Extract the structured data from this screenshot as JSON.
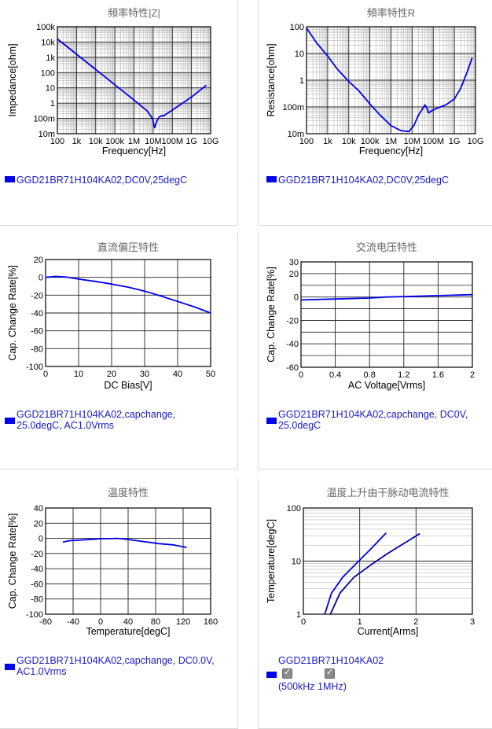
{
  "chart_data": [
    {
      "type": "line",
      "title": "頻率特性|Z|",
      "xlabel": "Frequency[Hz]",
      "ylabel": "Impedance[ohm]",
      "xscale": "log",
      "yscale": "log",
      "xlim": [
        100,
        10000000000
      ],
      "ylim": [
        0.01,
        100000
      ],
      "xticks": [
        {
          "v": 100,
          "l": "100"
        },
        {
          "v": 1000,
          "l": "1k"
        },
        {
          "v": 10000,
          "l": "10k"
        },
        {
          "v": 100000,
          "l": "100k"
        },
        {
          "v": 1000000,
          "l": "1M"
        },
        {
          "v": 10000000,
          "l": "10M"
        },
        {
          "v": 100000000,
          "l": "100M"
        },
        {
          "v": 1000000000,
          "l": "1G"
        },
        {
          "v": 10000000000,
          "l": "10G"
        }
      ],
      "yticks": [
        {
          "v": 100000,
          "l": "100k"
        },
        {
          "v": 10000,
          "l": "10k"
        },
        {
          "v": 1000,
          "l": "1k"
        },
        {
          "v": 100,
          "l": "100"
        },
        {
          "v": 10,
          "l": "10"
        },
        {
          "v": 1,
          "l": "1"
        },
        {
          "v": 0.1,
          "l": "100m"
        },
        {
          "v": 0.01,
          "l": "10m"
        }
      ],
      "grid": "log-minor",
      "series": [
        {
          "color": "#0000ee",
          "points": [
            [
              100,
              16000
            ],
            [
              1000000,
              1.6
            ],
            [
              5000000,
              0.3
            ],
            [
              9000000,
              0.1
            ],
            [
              12000000,
              0.025
            ],
            [
              15000000,
              0.06
            ],
            [
              20000000,
              0.12
            ],
            [
              30000000,
              0.16
            ],
            [
              35000000,
              0.14
            ],
            [
              50000000,
              0.2
            ],
            [
              100000000,
              0.35
            ],
            [
              1000000000,
              2.5
            ],
            [
              6000000000,
              15
            ]
          ]
        }
      ],
      "legend": "GGD21BR71H104KA02,DC0V,25degC"
    },
    {
      "type": "line",
      "title": "頻率特性R",
      "xlabel": "Frequency[Hz]",
      "ylabel": "Resistance[ohm]",
      "xscale": "log",
      "yscale": "log",
      "xlim": [
        100,
        10000000000
      ],
      "ylim": [
        0.01,
        100
      ],
      "xticks": [
        {
          "v": 100,
          "l": "100"
        },
        {
          "v": 1000,
          "l": "1k"
        },
        {
          "v": 10000,
          "l": "10k"
        },
        {
          "v": 100000,
          "l": "100k"
        },
        {
          "v": 1000000,
          "l": "1M"
        },
        {
          "v": 10000000,
          "l": "10M"
        },
        {
          "v": 100000000,
          "l": "100M"
        },
        {
          "v": 1000000000,
          "l": "1G"
        },
        {
          "v": 10000000000,
          "l": "10G"
        }
      ],
      "yticks": [
        {
          "v": 100,
          "l": "100"
        },
        {
          "v": 10,
          "l": "10"
        },
        {
          "v": 1,
          "l": "1"
        },
        {
          "v": 0.1,
          "l": "100m"
        },
        {
          "v": 0.01,
          "l": "10m"
        }
      ],
      "grid": "log-minor",
      "series": [
        {
          "color": "#0000ee",
          "points": [
            [
              100,
              90
            ],
            [
              300,
              25
            ],
            [
              1000,
              8
            ],
            [
              3000,
              2.5
            ],
            [
              10000,
              0.9
            ],
            [
              30000,
              0.4
            ],
            [
              100000,
              0.13
            ],
            [
              300000,
              0.05
            ],
            [
              1000000,
              0.02
            ],
            [
              3000000,
              0.013
            ],
            [
              7000000,
              0.012
            ],
            [
              12000000,
              0.02
            ],
            [
              20000000,
              0.05
            ],
            [
              30000000,
              0.08
            ],
            [
              40000000,
              0.12
            ],
            [
              50000000,
              0.09
            ],
            [
              60000000,
              0.06
            ],
            [
              80000000,
              0.07
            ],
            [
              150000000,
              0.09
            ],
            [
              400000000,
              0.12
            ],
            [
              1000000000,
              0.2
            ],
            [
              2000000000,
              0.5
            ],
            [
              4000000000,
              2
            ],
            [
              7000000000,
              7
            ]
          ]
        }
      ],
      "legend": "GGD21BR71H104KA02,DC0V,25degC"
    },
    {
      "type": "line",
      "title": "直流偏圧特性",
      "xlabel": "DC Bias[V]",
      "ylabel": "Cap. Change Rate[%]",
      "xlim": [
        0,
        50
      ],
      "ylim": [
        -100,
        20
      ],
      "xticks": [
        {
          "v": 0,
          "l": "0"
        },
        {
          "v": 10,
          "l": "10"
        },
        {
          "v": 20,
          "l": "20"
        },
        {
          "v": 30,
          "l": "30"
        },
        {
          "v": 40,
          "l": "40"
        },
        {
          "v": 50,
          "l": "50"
        }
      ],
      "yticks": [
        {
          "v": 20,
          "l": "20"
        },
        {
          "v": 0,
          "l": "0"
        },
        {
          "v": -20,
          "l": "-20"
        },
        {
          "v": -40,
          "l": "-40"
        },
        {
          "v": -60,
          "l": "-60"
        },
        {
          "v": -80,
          "l": "-80"
        },
        {
          "v": -100,
          "l": "-100"
        }
      ],
      "grid": "major",
      "series": [
        {
          "color": "#0000ee",
          "points": [
            [
              0,
              0
            ],
            [
              3,
              1
            ],
            [
              6,
              0.5
            ],
            [
              10,
              -2
            ],
            [
              15,
              -4.5
            ],
            [
              20,
              -7.5
            ],
            [
              25,
              -11
            ],
            [
              30,
              -15.5
            ],
            [
              35,
              -21
            ],
            [
              40,
              -27
            ],
            [
              45,
              -33
            ],
            [
              50,
              -40
            ]
          ]
        }
      ],
      "legend": "GGD21BR71H104KA02,capchange,\n25.0degC, AC1.0Vrms"
    },
    {
      "type": "line",
      "title": "交流电压特性",
      "xlabel": "AC Voltage[Vrms]",
      "ylabel": "Cap. Change Rate[%]",
      "xlim": [
        0,
        2
      ],
      "ylim": [
        -60,
        30
      ],
      "xticks": [
        {
          "v": 0,
          "l": "0"
        },
        {
          "v": 0.4,
          "l": "0.4"
        },
        {
          "v": 0.8,
          "l": "0.8"
        },
        {
          "v": 1.2,
          "l": "1.2"
        },
        {
          "v": 1.6,
          "l": "1.6"
        },
        {
          "v": 2,
          "l": "2"
        }
      ],
      "yticks": [
        {
          "v": 30,
          "l": "30"
        },
        {
          "v": 20,
          "l": "20"
        },
        {
          "v": 0,
          "l": "0"
        },
        {
          "v": -20,
          "l": "-20"
        },
        {
          "v": -40,
          "l": "-40"
        },
        {
          "v": -60,
          "l": "-60"
        }
      ],
      "extra_gridlines": [
        10,
        -10,
        -30,
        -50
      ],
      "grid": "major",
      "series": [
        {
          "color": "#0000ee",
          "points": [
            [
              0,
              -2.5
            ],
            [
              0.4,
              -1.7
            ],
            [
              0.8,
              -0.9
            ],
            [
              1.0,
              0
            ],
            [
              1.2,
              0.4
            ],
            [
              1.6,
              1.2
            ],
            [
              2,
              2
            ]
          ]
        }
      ],
      "legend": "GGD21BR71H104KA02,capchange, DC0V,\n25.0degC"
    },
    {
      "type": "line",
      "title": "温度特性",
      "xlabel": "Temperature[degC]",
      "ylabel": "Cap. Change Rate[%]",
      "xlim": [
        -80,
        160
      ],
      "ylim": [
        -100,
        40
      ],
      "xticks": [
        {
          "v": -80,
          "l": "-80"
        },
        {
          "v": -40,
          "l": "-40"
        },
        {
          "v": 0,
          "l": "0"
        },
        {
          "v": 40,
          "l": "40"
        },
        {
          "v": 80,
          "l": "80"
        },
        {
          "v": 120,
          "l": "120"
        },
        {
          "v": 160,
          "l": "160"
        }
      ],
      "yticks": [
        {
          "v": 40,
          "l": "40"
        },
        {
          "v": 20,
          "l": "20"
        },
        {
          "v": 0,
          "l": "0"
        },
        {
          "v": -20,
          "l": "-20"
        },
        {
          "v": -40,
          "l": "-40"
        },
        {
          "v": -60,
          "l": "-60"
        },
        {
          "v": -80,
          "l": "-80"
        },
        {
          "v": -100,
          "l": "-100"
        }
      ],
      "grid": "major",
      "series": [
        {
          "color": "#0000ee",
          "points": [
            [
              -55,
              -5
            ],
            [
              -45,
              -3
            ],
            [
              -25,
              -2
            ],
            [
              0,
              -0.5
            ],
            [
              25,
              0
            ],
            [
              40,
              -1.5
            ],
            [
              60,
              -4
            ],
            [
              85,
              -7
            ],
            [
              105,
              -8.5
            ],
            [
              125,
              -12
            ]
          ]
        }
      ],
      "legend": "GGD21BR71H104KA02,capchange, DC0.0V,\nAC1.0Vrms"
    },
    {
      "type": "line",
      "title": "温度上升由干脉动电流特性",
      "xlabel": "Current[Arms]",
      "ylabel": "Temperature[degC]",
      "xlim": [
        0,
        3
      ],
      "ylim": [
        1,
        100
      ],
      "yscale": "log",
      "xticks": [
        {
          "v": 0,
          "l": "0"
        },
        {
          "v": 1,
          "l": "1"
        },
        {
          "v": 2,
          "l": "2"
        },
        {
          "v": 3,
          "l": "3"
        }
      ],
      "yticks": [
        {
          "v": 100,
          "l": "100"
        },
        {
          "v": 10,
          "l": "10"
        },
        {
          "v": 1,
          "l": "1"
        }
      ],
      "grid": "log-y-minor",
      "series": [
        {
          "name": "500kHz",
          "color": "#0000ee",
          "points": [
            [
              0.38,
              1
            ],
            [
              0.5,
              2.5
            ],
            [
              0.7,
              5
            ],
            [
              1.0,
              10.5
            ],
            [
              1.2,
              17
            ],
            [
              1.47,
              34
            ]
          ]
        },
        {
          "name": "1MHz",
          "color": "#0000a0",
          "points": [
            [
              0.48,
              1
            ],
            [
              0.65,
              2.5
            ],
            [
              0.9,
              5
            ],
            [
              1.2,
              8.5
            ],
            [
              1.5,
              14
            ],
            [
              1.8,
              22
            ],
            [
              2.07,
              33
            ]
          ]
        }
      ],
      "legend_title": "GGD21BR71H104KA02",
      "legend_items": [
        "500kHz",
        "1MHz"
      ],
      "legend_open": "(",
      "legend_close": ")",
      "legend_sep": " "
    }
  ]
}
